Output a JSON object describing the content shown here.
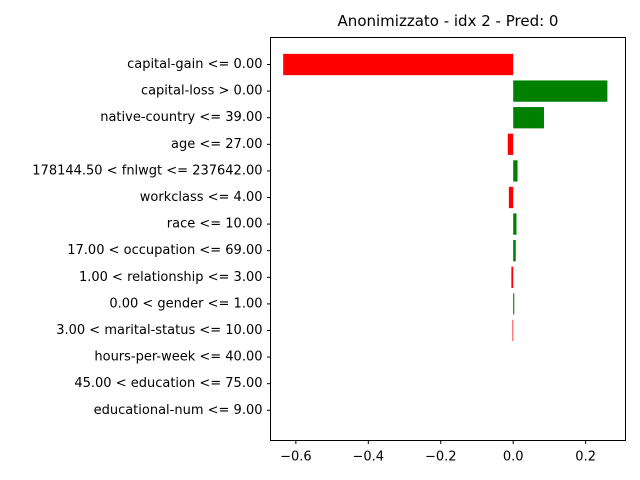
{
  "chart_data": {
    "type": "bar",
    "orientation": "horizontal",
    "title": "Anonimizzato - idx 2 - Pred: 0",
    "xlabel": "",
    "ylabel": "",
    "xlim": [
      -0.67,
      0.31
    ],
    "x_ticks": [
      -0.6,
      -0.4,
      -0.2,
      0.0,
      0.2
    ],
    "x_tick_labels": [
      "−0.6",
      "−0.4",
      "−0.2",
      "0.0",
      "0.2"
    ],
    "positive_color": "#008000",
    "negative_color": "#ff0000",
    "categories": [
      "capital-gain <= 0.00",
      "capital-loss > 0.00",
      "native-country <= 39.00",
      "age <= 27.00",
      "178144.50 < fnlwgt <= 237642.00",
      "workclass <= 4.00",
      "race <= 10.00",
      "17.00 < occupation <= 69.00",
      "1.00 < relationship <= 3.00",
      "0.00 < gender <= 1.00",
      "3.00 < marital-status <= 10.00",
      "hours-per-week <= 40.00",
      "45.00 < education <= 75.00",
      "educational-num <= 9.00"
    ],
    "values": [
      -0.635,
      0.26,
      0.085,
      -0.015,
      0.012,
      -0.012,
      0.009,
      0.007,
      -0.005,
      0.003,
      -0.002,
      0.0,
      0.0,
      0.0
    ],
    "grid": false,
    "legend": "none"
  }
}
